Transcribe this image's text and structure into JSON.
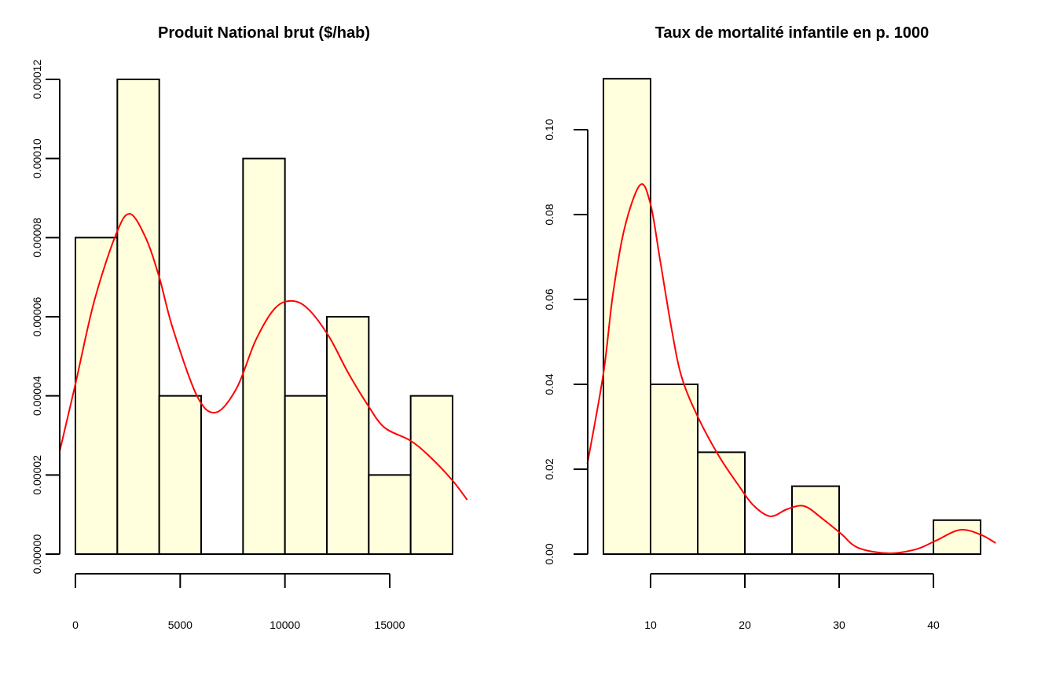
{
  "chart_data": [
    {
      "type": "bar",
      "subtype": "histogram-with-density",
      "title": "Produit National brut ($/hab)",
      "xlabel": "",
      "ylabel": "",
      "bin_edges": [
        0,
        2000,
        4000,
        6000,
        8000,
        10000,
        12000,
        14000,
        16000,
        18000
      ],
      "values": [
        8e-05,
        0.00012,
        4e-05,
        0.0,
        0.0001,
        4e-05,
        6e-05,
        2e-05,
        4e-05
      ],
      "bar_fill": "#ffffdd",
      "x_ticks": [
        0,
        5000,
        10000,
        15000
      ],
      "x_tick_labels": [
        "0",
        "5000",
        "10000",
        "15000"
      ],
      "y_ticks": [
        0,
        2e-05,
        4e-05,
        6e-05,
        8e-05,
        0.0001,
        0.00012
      ],
      "y_tick_labels": [
        "0.00000",
        "0.00002",
        "0.00004",
        "0.00006",
        "0.00008",
        "0.00010",
        "0.00012"
      ],
      "ylim": [
        0,
        0.00012
      ],
      "xlim": [
        -750,
        18700
      ],
      "grid": false,
      "density": {
        "name": "kernel density",
        "color": "#ff0000",
        "x": [
          -750,
          0,
          900,
          1950,
          2600,
          3350,
          4000,
          4650,
          5800,
          6700,
          7700,
          8600,
          9500,
          10300,
          11100,
          12100,
          13000,
          13950,
          14750,
          15950,
          16800,
          17950,
          18700
        ],
        "y": [
          2.6e-05,
          4.3e-05,
          6.4e-05,
          8.1e-05,
          8.6e-05,
          8e-05,
          7e-05,
          5.7e-05,
          4e-05,
          3.58e-05,
          4.2e-05,
          5.4e-05,
          6.2e-05,
          6.4e-05,
          6.2e-05,
          5.5e-05,
          4.6e-05,
          3.77e-05,
          3.2e-05,
          2.88e-05,
          2.52e-05,
          1.89e-05,
          1.37e-05
        ]
      }
    },
    {
      "type": "bar",
      "subtype": "histogram-with-density",
      "title": "Taux de mortalité infantile en p. 1000",
      "xlabel": "",
      "ylabel": "",
      "bin_edges": [
        5,
        10,
        15,
        20,
        25,
        30,
        35,
        40,
        45
      ],
      "values": [
        0.112,
        0.04,
        0.024,
        0.0,
        0.016,
        0.0,
        0.0,
        0.008
      ],
      "bar_fill": "#ffffdd",
      "x_ticks": [
        10,
        20,
        30,
        40
      ],
      "x_tick_labels": [
        "10",
        "20",
        "30",
        "40"
      ],
      "y_ticks": [
        0,
        0.02,
        0.04,
        0.06,
        0.08,
        0.1
      ],
      "y_tick_labels": [
        "0.00",
        "0.02",
        "0.04",
        "0.06",
        "0.08",
        "0.10"
      ],
      "ylim": [
        0,
        0.112
      ],
      "xlim": [
        3.3,
        46.5
      ],
      "grid": false,
      "density": {
        "name": "kernel density",
        "color": "#ff0000",
        "x": [
          3.3,
          5.0,
          6.0,
          7.25,
          8.9,
          10.0,
          11.0,
          12.25,
          13.3,
          15.0,
          17.25,
          19.3,
          20.9,
          22.7,
          24.5,
          26.3,
          28.25,
          30.2,
          32.0,
          35.2,
          38.1,
          40.2,
          42.8,
          45.0,
          46.6
        ],
        "y": [
          0.0213,
          0.0426,
          0.0611,
          0.0769,
          0.087,
          0.0824,
          0.0694,
          0.0528,
          0.0417,
          0.0324,
          0.0231,
          0.0163,
          0.0115,
          0.0089,
          0.0106,
          0.0113,
          0.0083,
          0.0048,
          0.0015,
          0.0002,
          0.0011,
          0.0031,
          0.0057,
          0.0046,
          0.0026
        ]
      }
    }
  ]
}
